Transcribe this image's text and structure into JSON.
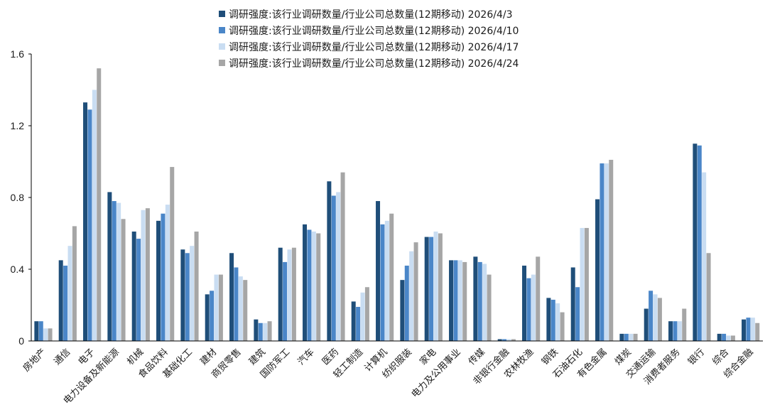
{
  "chart_data": {
    "type": "bar",
    "title": "",
    "xlabel": "",
    "ylabel": "",
    "ylim": [
      0,
      1.6
    ],
    "yticks": [
      "0",
      "0.4",
      "0.8",
      "1.2",
      "1.6"
    ],
    "grid": false,
    "legend_position": "top-center",
    "categories": [
      "房地产",
      "通信",
      "电子",
      "电力设备及新能源",
      "机械",
      "食品饮料",
      "基础化工",
      "建材",
      "商贸零售",
      "建筑",
      "国防军工",
      "汽车",
      "医药",
      "轻工制造",
      "计算机",
      "纺织服装",
      "家电",
      "电力及公用事业",
      "传媒",
      "非银行金融",
      "农林牧渔",
      "钢铁",
      "石油石化",
      "有色金属",
      "煤炭",
      "交通运输",
      "消费者服务",
      "银行",
      "综合",
      "综合金融"
    ],
    "series": [
      {
        "name": "调研强度:该行业调研数量/行业公司总数量(12期移动) 2026/4/3",
        "color": "#1f4e79",
        "values": [
          0.11,
          0.45,
          1.33,
          0.83,
          0.61,
          0.67,
          0.51,
          0.26,
          0.49,
          0.12,
          0.52,
          0.65,
          0.89,
          0.22,
          0.78,
          0.34,
          0.58,
          0.45,
          0.47,
          0.01,
          0.42,
          0.24,
          0.41,
          0.79,
          0.04,
          0.18,
          0.11,
          1.1,
          0.04,
          0.12
        ]
      },
      {
        "name": "调研强度:该行业调研数量/行业公司总数量(12期移动) 2026/4/10",
        "color": "#4a86c8",
        "values": [
          0.11,
          0.42,
          1.29,
          0.78,
          0.57,
          0.71,
          0.49,
          0.28,
          0.41,
          0.1,
          0.44,
          0.62,
          0.81,
          0.19,
          0.65,
          0.42,
          0.58,
          0.45,
          0.44,
          0.01,
          0.35,
          0.23,
          0.3,
          0.99,
          0.04,
          0.28,
          0.11,
          1.09,
          0.04,
          0.13
        ]
      },
      {
        "name": "调研强度:该行业调研数量/行业公司总数量(12期移动) 2026/4/17",
        "color": "#c9ddf2",
        "values": [
          0.07,
          0.53,
          1.4,
          0.77,
          0.73,
          0.76,
          0.53,
          0.37,
          0.36,
          0.1,
          0.51,
          0.61,
          0.83,
          0.27,
          0.67,
          0.5,
          0.61,
          0.45,
          0.43,
          0.01,
          0.37,
          0.21,
          0.63,
          0.99,
          0.04,
          0.26,
          0.11,
          0.94,
          0.03,
          0.13
        ]
      },
      {
        "name": "调研强度:该行业调研数量/行业公司总数量(12期移动) 2026/4/24",
        "color": "#a6a6a6",
        "values": [
          0.07,
          0.64,
          1.52,
          0.68,
          0.74,
          0.97,
          0.61,
          0.37,
          0.34,
          0.11,
          0.52,
          0.6,
          0.94,
          0.3,
          0.71,
          0.55,
          0.6,
          0.44,
          0.37,
          0.01,
          0.47,
          0.16,
          0.63,
          1.01,
          0.04,
          0.24,
          0.18,
          0.49,
          0.03,
          0.1
        ]
      }
    ]
  }
}
